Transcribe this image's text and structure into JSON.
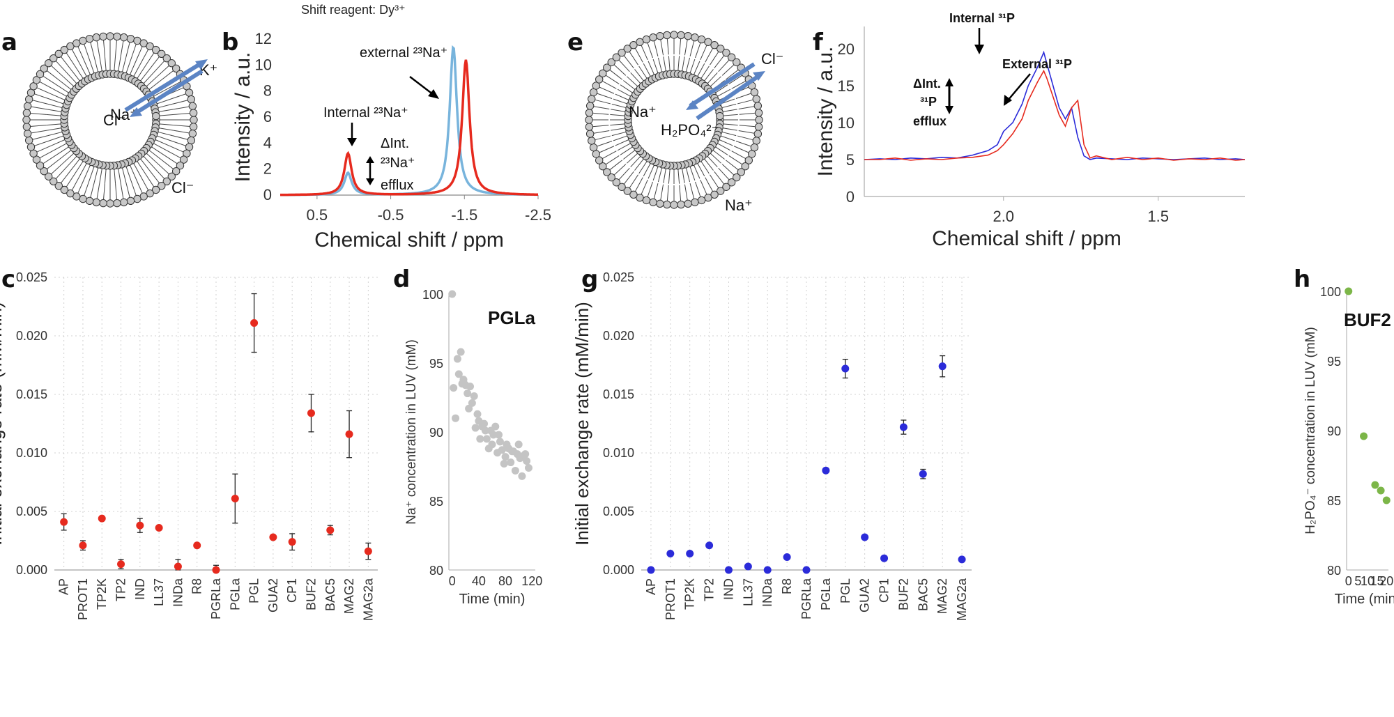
{
  "header": {
    "shift_reagent": "Shift reagent: Dy³⁺"
  },
  "colors": {
    "red": "#e62a1e",
    "blue": "#2b2bd9",
    "lightblue": "#78b4dc",
    "grey": "#c4c4c4",
    "green": "#7cb648",
    "arrow": "#5b84c4",
    "grid": "#d0d0d0"
  },
  "panels": {
    "a": {
      "letter": "a",
      "ion_out_top": "K⁺",
      "ion_in": "Na⁺",
      "anion_in": "Cl⁻",
      "anion_out": "Cl⁻"
    },
    "b": {
      "letter": "b"
    },
    "e": {
      "letter": "e",
      "ion_out_top": "Cl⁻",
      "ion_in": "Na⁺",
      "anion_in": "H₂PO₄²⁻",
      "ion_out": "Na⁺"
    },
    "f": {
      "letter": "f"
    },
    "c": {
      "letter": "c"
    },
    "d": {
      "letter": "d"
    },
    "g": {
      "letter": "g"
    },
    "h": {
      "letter": "h"
    }
  },
  "chart_data": [
    {
      "id": "b",
      "type": "line",
      "xlabel": "Chemical shift / ppm",
      "ylabel": "Intensity / a.u.",
      "xlim": [
        1.0,
        -2.5
      ],
      "ylim": [
        0,
        12
      ],
      "xticks": [
        "0.5",
        "-0.5",
        "-1.5",
        "-2.5"
      ],
      "xtick_values": [
        0.5,
        -0.5,
        -1.5,
        -2.5
      ],
      "yticks": [
        "0",
        "2",
        "4",
        "6",
        "8",
        "10",
        "12"
      ],
      "ytick_values": [
        0,
        2,
        4,
        6,
        8,
        10,
        12
      ],
      "series": [
        {
          "name": "blue",
          "peaks": [
            {
              "center": 0.08,
              "height": 1.7,
              "width": 0.06
            },
            {
              "center": -1.35,
              "height": 11.4,
              "width": 0.06
            }
          ]
        },
        {
          "name": "red",
          "peaks": [
            {
              "center": 0.08,
              "height": 3.2,
              "width": 0.06
            },
            {
              "center": -1.52,
              "height": 10.4,
              "width": 0.06
            }
          ]
        }
      ],
      "annotations": {
        "external": "external ²³Na⁺",
        "internal": "Internal ²³Na⁺",
        "delta1": "ΔInt.",
        "delta2": "²³Na⁺",
        "delta3": "efflux"
      }
    },
    {
      "id": "f",
      "type": "line",
      "xlabel": "Chemical shift / ppm",
      "ylabel": "Intensity / a.u.",
      "xlim": [
        2.45,
        1.22
      ],
      "ylim": [
        0,
        23
      ],
      "xticks": [
        "2.0",
        "1.5"
      ],
      "xtick_values": [
        2.0,
        1.5
      ],
      "yticks": [
        "0",
        "5",
        "10",
        "15",
        "20"
      ],
      "ytick_values": [
        0,
        5,
        10,
        15,
        20
      ],
      "series": [
        {
          "name": "blue",
          "x": [
            2.45,
            2.4,
            2.35,
            2.3,
            2.25,
            2.2,
            2.15,
            2.1,
            2.05,
            2.02,
            2.0,
            1.97,
            1.94,
            1.92,
            1.89,
            1.87,
            1.86,
            1.84,
            1.82,
            1.8,
            1.78,
            1.76,
            1.74,
            1.72,
            1.7,
            1.65,
            1.6,
            1.55,
            1.5,
            1.45,
            1.4,
            1.35,
            1.3,
            1.25,
            1.22
          ],
          "y": [
            5.0,
            5.1,
            5.0,
            5.2,
            5.1,
            5.3,
            5.2,
            5.6,
            6.2,
            7.0,
            8.8,
            10.0,
            12.5,
            15.0,
            17.5,
            19.5,
            18.0,
            15.0,
            12.0,
            10.5,
            12.0,
            8.0,
            5.5,
            5.0,
            5.2,
            5.1,
            5.0,
            5.2,
            5.1,
            5.0,
            5.1,
            5.2,
            5.0,
            5.1,
            5.0
          ]
        },
        {
          "name": "red",
          "x": [
            2.45,
            2.4,
            2.35,
            2.3,
            2.25,
            2.2,
            2.15,
            2.1,
            2.05,
            2.02,
            2.0,
            1.97,
            1.94,
            1.92,
            1.89,
            1.87,
            1.86,
            1.84,
            1.82,
            1.8,
            1.78,
            1.76,
            1.74,
            1.72,
            1.7,
            1.65,
            1.6,
            1.55,
            1.5,
            1.45,
            1.4,
            1.35,
            1.3,
            1.25,
            1.22
          ],
          "y": [
            5.0,
            5.0,
            5.2,
            4.9,
            5.1,
            5.0,
            5.2,
            5.3,
            5.6,
            6.2,
            7.0,
            8.5,
            10.5,
            13.0,
            15.5,
            17.0,
            16.0,
            13.5,
            11.0,
            9.5,
            12.0,
            13.0,
            7.0,
            5.2,
            5.5,
            5.0,
            5.3,
            5.0,
            5.2,
            4.9,
            5.1,
            5.0,
            5.2,
            4.9,
            5.0
          ]
        }
      ],
      "annotations": {
        "internal": "Internal ³¹P",
        "external": "External ³¹P",
        "delta1": "ΔInt.",
        "delta2": "³¹P",
        "delta3": "efflux"
      }
    },
    {
      "id": "c",
      "type": "scatter",
      "ylabel": "Initial exchange rate (mM/min)",
      "ylim": [
        0,
        0.025
      ],
      "yticks": [
        "0.000",
        "0.005",
        "0.010",
        "0.015",
        "0.020",
        "0.025"
      ],
      "ytick_values": [
        0,
        0.005,
        0.01,
        0.015,
        0.02,
        0.025
      ],
      "categories": [
        "AP",
        "PROT1",
        "TP2K",
        "TP2",
        "IND",
        "LL37",
        "INDa",
        "R8",
        "PGRLa",
        "PGLa",
        "PGL",
        "GUA2",
        "CP1",
        "BUF2",
        "BAC5",
        "MAG2",
        "MAG2a"
      ],
      "values": [
        0.0041,
        0.0021,
        0.0044,
        0.0005,
        0.0038,
        0.0036,
        0.0003,
        0.0021,
        0.0,
        0.0061,
        0.0211,
        0.0028,
        0.0024,
        0.0134,
        0.0034,
        0.0116,
        0.0016
      ],
      "errors": [
        0.0007,
        0.0004,
        0.0001,
        0.0004,
        0.0006,
        0.0001,
        0.0006,
        0.0001,
        0.0004,
        0.0021,
        0.0025,
        0.0001,
        0.0007,
        0.0016,
        0.0004,
        0.002,
        0.0007
      ]
    },
    {
      "id": "d",
      "type": "scatter",
      "title": "PGLa",
      "xlabel": "Time (min)",
      "ylabel": "Na⁺ concentration in LUV (mM)",
      "xlim": [
        -5,
        125
      ],
      "ylim": [
        80,
        100
      ],
      "xticks": [
        "0",
        "40",
        "80",
        "120"
      ],
      "xtick_values": [
        0,
        40,
        80,
        120
      ],
      "yticks": [
        "80",
        "85",
        "90",
        "95",
        "100"
      ],
      "ytick_values": [
        80,
        85,
        90,
        95,
        100
      ],
      "x": [
        0,
        2,
        5,
        8,
        10,
        13,
        15,
        17,
        18,
        20,
        23,
        25,
        27,
        30,
        33,
        35,
        38,
        40,
        42,
        45,
        48,
        50,
        52,
        55,
        58,
        60,
        62,
        65,
        68,
        70,
        72,
        75,
        78,
        80,
        82,
        85,
        88,
        90,
        92,
        95,
        98,
        100,
        102,
        105,
        108,
        110,
        112,
        115
      ],
      "y": [
        100,
        93.2,
        91,
        95.3,
        94.2,
        95.8,
        93.5,
        93.8,
        93.5,
        93.4,
        92.8,
        91.7,
        93.3,
        92.1,
        92.6,
        90.3,
        91.3,
        90.8,
        89.5,
        90.4,
        90.6,
        90.1,
        89.5,
        88.8,
        90.1,
        89.1,
        89.8,
        90.4,
        88.5,
        89.8,
        89.3,
        88.7,
        87.7,
        88.2,
        89.1,
        88.8,
        87.8,
        88.6,
        88.6,
        87.2,
        88.4,
        89.1,
        88.1,
        86.8,
        88.3,
        88.4,
        87.9,
        87.4
      ]
    },
    {
      "id": "g",
      "type": "scatter",
      "ylabel": "Initial exchange rate (mM/min)",
      "ylim": [
        0,
        0.025
      ],
      "yticks": [
        "0.000",
        "0.005",
        "0.010",
        "0.015",
        "0.020",
        "0.025"
      ],
      "ytick_values": [
        0,
        0.005,
        0.01,
        0.015,
        0.02,
        0.025
      ],
      "categories": [
        "AP",
        "PROT1",
        "TP2K",
        "TP2",
        "IND",
        "LL37",
        "INDa",
        "R8",
        "PGRLa",
        "PGLa",
        "PGL",
        "GUA2",
        "CP1",
        "BUF2",
        "BAC5",
        "MAG2",
        "MAG2a"
      ],
      "values": [
        0.0,
        0.0014,
        0.0014,
        0.0021,
        0.0,
        0.0003,
        0.0,
        0.0011,
        0.0,
        0.0085,
        0.0172,
        0.0028,
        0.001,
        0.0122,
        0.0082,
        0.0174,
        0.0009
      ],
      "errors": [
        0,
        0,
        0,
        0,
        0,
        0,
        0,
        0,
        0,
        0,
        0.0008,
        0,
        0,
        0.0006,
        0.0004,
        0.0009,
        0
      ]
    },
    {
      "id": "h",
      "type": "scatter",
      "title": "BUF2",
      "xlabel": "Time (min)",
      "ylabel": "H₂PO₄⁻ concentration in LUV (mM)",
      "xlim": [
        -1,
        21
      ],
      "ylim": [
        80,
        100
      ],
      "xticks": [
        "0",
        "5",
        "10",
        "15",
        "20"
      ],
      "xtick_values": [
        0,
        5,
        10,
        15,
        20
      ],
      "yticks": [
        "80",
        "85",
        "90",
        "95",
        "100"
      ],
      "ytick_values": [
        80,
        85,
        90,
        95,
        100
      ],
      "x": [
        0,
        8,
        14,
        17,
        20
      ],
      "y": [
        100,
        89.6,
        86.1,
        85.7,
        85.0
      ]
    }
  ]
}
